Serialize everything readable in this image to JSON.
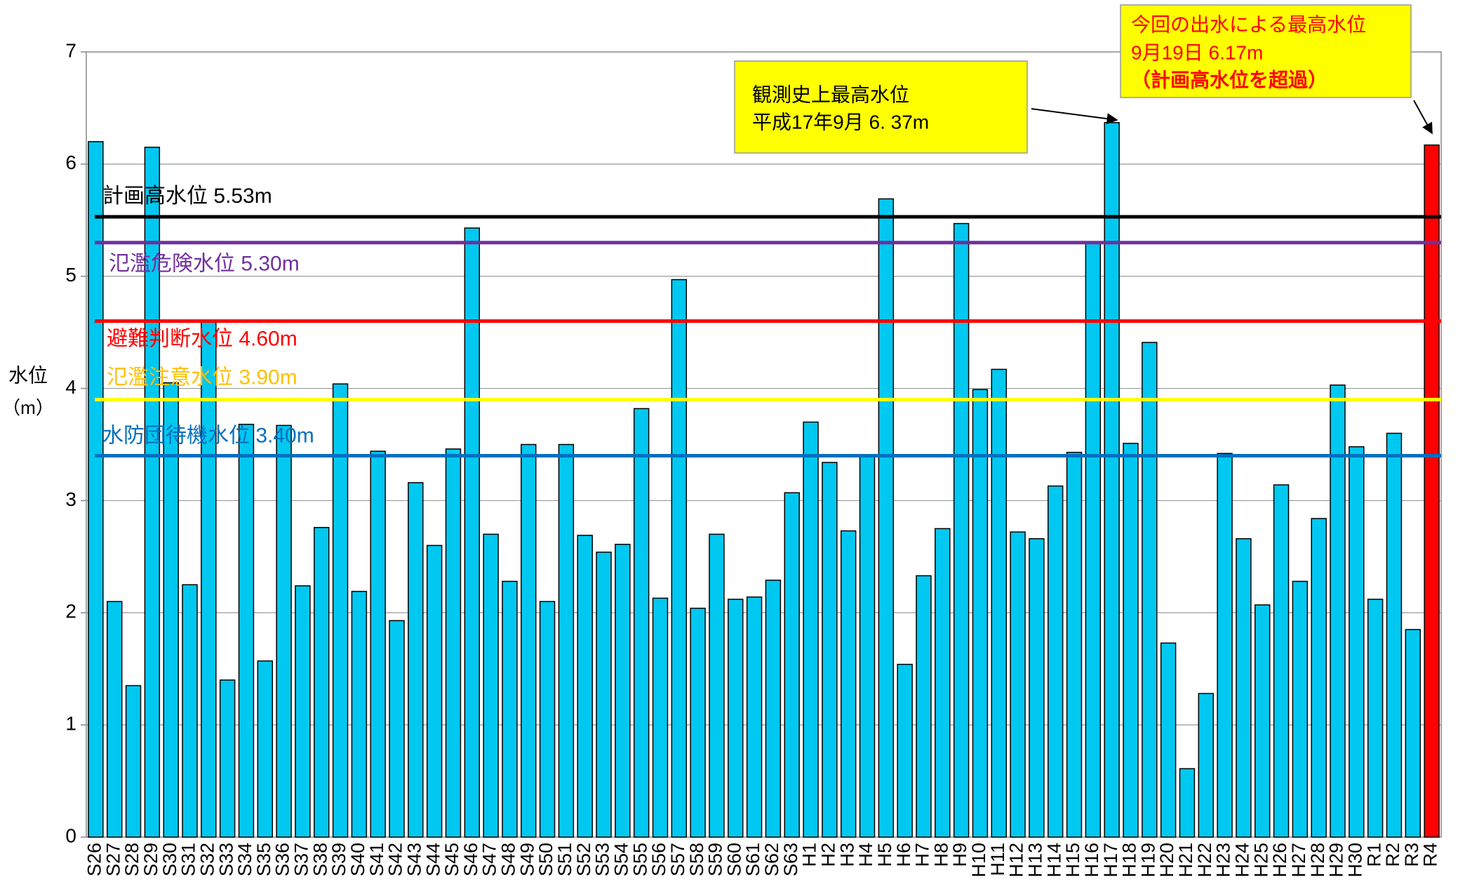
{
  "chart_data": {
    "type": "bar",
    "y_label": "水位",
    "y_unit": "（m）",
    "categories": [
      "S26",
      "S27",
      "S28",
      "S29",
      "S30",
      "S31",
      "S32",
      "S33",
      "S34",
      "S35",
      "S36",
      "S37",
      "S38",
      "S39",
      "S40",
      "S41",
      "S42",
      "S43",
      "S44",
      "S45",
      "S46",
      "S47",
      "S48",
      "S49",
      "S50",
      "S51",
      "S52",
      "S53",
      "S54",
      "S55",
      "S56",
      "S57",
      "S58",
      "S59",
      "S60",
      "S61",
      "S62",
      "S63",
      "H1",
      "H2",
      "H3",
      "H4",
      "H5",
      "H6",
      "H7",
      "H8",
      "H9",
      "H10",
      "H11",
      "H12",
      "H13",
      "H14",
      "H15",
      "H16",
      "H17",
      "H18",
      "H19",
      "H20",
      "H21",
      "H22",
      "H23",
      "H24",
      "H25",
      "H26",
      "H27",
      "H28",
      "H29",
      "H30",
      "R1",
      "R2",
      "R3",
      "R4"
    ],
    "values": [
      6.2,
      2.1,
      1.35,
      6.15,
      4.05,
      2.25,
      4.6,
      1.4,
      3.68,
      1.57,
      3.67,
      2.24,
      2.76,
      4.04,
      2.19,
      3.44,
      1.93,
      3.16,
      2.6,
      3.46,
      5.43,
      2.7,
      2.28,
      3.5,
      2.1,
      3.5,
      2.69,
      2.54,
      2.61,
      3.82,
      2.13,
      4.97,
      2.04,
      2.7,
      2.12,
      2.14,
      2.29,
      3.07,
      3.7,
      3.34,
      2.73,
      3.4,
      5.69,
      1.54,
      2.33,
      2.75,
      5.47,
      3.99,
      4.17,
      2.72,
      2.66,
      3.13,
      3.43,
      5.3,
      6.37,
      3.51,
      4.41,
      1.73,
      0.61,
      1.28,
      3.42,
      2.66,
      2.07,
      3.14,
      2.28,
      2.84,
      4.03,
      3.48,
      2.12,
      3.6,
      1.85,
      6.17
    ],
    "colors": [
      "#00c8f0",
      "#00c8f0",
      "#00c8f0",
      "#00c8f0",
      "#00c8f0",
      "#00c8f0",
      "#00c8f0",
      "#00c8f0",
      "#00c8f0",
      "#00c8f0",
      "#00c8f0",
      "#00c8f0",
      "#00c8f0",
      "#00c8f0",
      "#00c8f0",
      "#00c8f0",
      "#00c8f0",
      "#00c8f0",
      "#00c8f0",
      "#00c8f0",
      "#00c8f0",
      "#00c8f0",
      "#00c8f0",
      "#00c8f0",
      "#00c8f0",
      "#00c8f0",
      "#00c8f0",
      "#00c8f0",
      "#00c8f0",
      "#00c8f0",
      "#00c8f0",
      "#00c8f0",
      "#00c8f0",
      "#00c8f0",
      "#00c8f0",
      "#00c8f0",
      "#00c8f0",
      "#00c8f0",
      "#00c8f0",
      "#00c8f0",
      "#00c8f0",
      "#00c8f0",
      "#00c8f0",
      "#00c8f0",
      "#00c8f0",
      "#00c8f0",
      "#00c8f0",
      "#00c8f0",
      "#00c8f0",
      "#00c8f0",
      "#00c8f0",
      "#00c8f0",
      "#00c8f0",
      "#00c8f0",
      "#00c8f0",
      "#00c8f0",
      "#00c8f0",
      "#00c8f0",
      "#00c8f0",
      "#00c8f0",
      "#00c8f0",
      "#00c8f0",
      "#00c8f0",
      "#00c8f0",
      "#00c8f0",
      "#00c8f0",
      "#00c8f0",
      "#00c8f0",
      "#00c8f0",
      "#00c8f0",
      "#00c8f0",
      "#ff0000"
    ],
    "ylim": [
      0,
      7
    ],
    "yticks": [
      0,
      1,
      2,
      3,
      4,
      5,
      6,
      7
    ],
    "grid": true,
    "reference_lines": [
      {
        "value": 5.53,
        "label": "計画高水位  5.53m",
        "color": "#000000",
        "label_color": "#000000"
      },
      {
        "value": 5.3,
        "label": "氾濫危険水位  5.30m",
        "color": "#7030a0",
        "label_color": "#7030a0"
      },
      {
        "value": 4.6,
        "label": "避難判断水位  4.60m",
        "color": "#ff0000",
        "label_color": "#ff0000"
      },
      {
        "value": 3.9,
        "label": "氾濫注意水位  3.90m",
        "color": "#ffff00",
        "label_color": "#ffc000"
      },
      {
        "value": 3.4,
        "label": "水防団待機水位  3.40m",
        "color": "#0070c0",
        "label_color": "#0070c0"
      }
    ],
    "annotations": [
      {
        "lines": [
          "観測史上最高水位",
          "平成17年9月  6. 37m"
        ]
      },
      {
        "lines": [
          "今回の出水による最高水位",
          "9月19日  6.17m",
          "（計画高水位を超過）"
        ]
      }
    ]
  }
}
